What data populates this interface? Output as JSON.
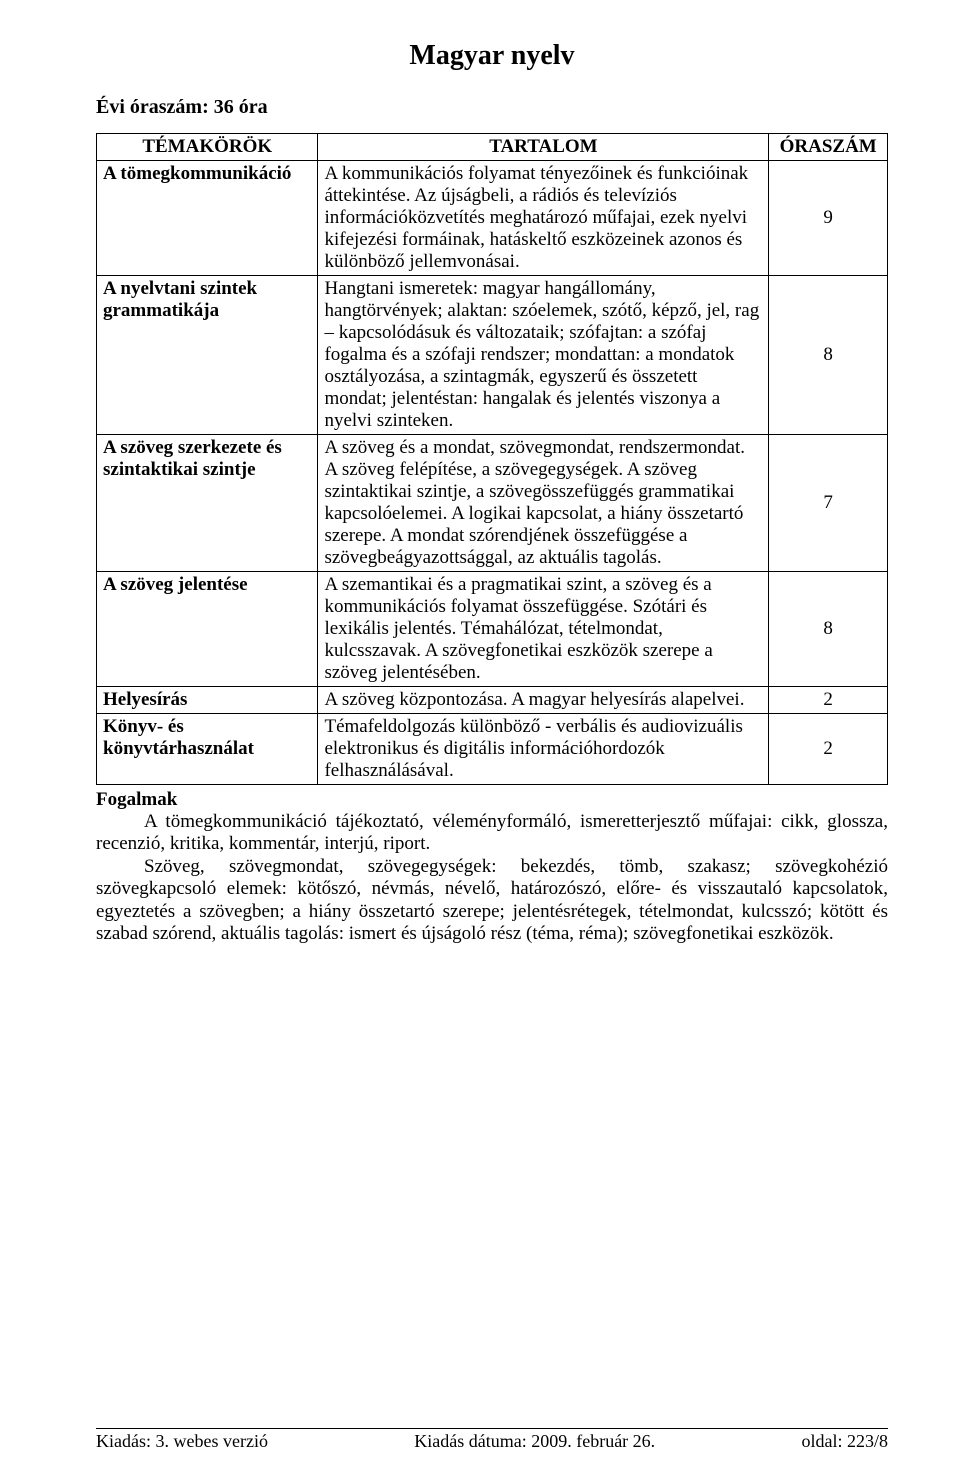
{
  "title": "Magyar nyelv",
  "hours_line": "Évi óraszám: 36 óra",
  "table": {
    "headers": {
      "c1": "TÉMAKÖRÖK",
      "c2": "TARTALOM",
      "c3": "ÓRASZÁM"
    },
    "rows": [
      {
        "topic": "A tömegkommunikáció",
        "content": "A kommunikációs folyamat tényezőinek és funkcióinak áttekintése.\nAz újságbeli, a rádiós és televíziós információközvetítés meghatározó műfajai, ezek nyelvi kifejezési formáinak, hatáskeltő eszközeinek azonos és különböző jellemvonásai.",
        "hours": "9"
      },
      {
        "topic": "A nyelvtani szintek grammatikája",
        "content": "Hangtani ismeretek: magyar hangállomány, hangtörvények;\nalaktan: szóelemek, szótő, képző, jel, rag – kapcsolódásuk és változataik;\nszófajtan: a szófaj fogalma és a szófaji rendszer; mondattan: a mondatok osztályozása, a szintagmák, egyszerű és összetett mondat; jelentéstan: hangalak és jelentés viszonya a nyelvi szinteken.",
        "hours": "8"
      },
      {
        "topic": "A szöveg szerkezete és szintaktikai szintje",
        "content": "A szöveg és a mondat, szövegmondat, rendszermondat.\nA szöveg felépítése, a szövegegységek. A szöveg szintaktikai szintje, a szövegösszefüggés grammatikai kapcsolóelemei. A logikai kapcsolat, a hiány összetartó szerepe. A mondat szórendjének összefüggése a szövegbeágyazottsággal, az aktuális tagolás.",
        "hours": "7"
      },
      {
        "topic": "A szöveg jelentése",
        "content": "A szemantikai és a pragmatikai szint, a szöveg és a kommunikációs folyamat összefüggése. Szótári és lexikális jelentés. Témahálózat, tételmondat, kulcsszavak.\nA szövegfonetikai eszközök szerepe a szöveg jelentésében.",
        "hours": "8"
      },
      {
        "topic": "Helyesírás",
        "content": "A szöveg központozása. A magyar helyesírás alapelvei.",
        "hours": "2"
      },
      {
        "topic": "Könyv- és könyvtárhasználat",
        "content": "Témafeldolgozás különböző - verbális és audiovizuális elektronikus és digitális információhordozók felhasználásával.",
        "hours": "2"
      }
    ]
  },
  "concepts": {
    "title": "Fogalmak",
    "p1": "A tömegkommunikáció tájékoztató, véleményformáló, ismeretterjesztő műfajai: cikk, glossza, recenzió, kritika, kommentár, interjú, riport.",
    "p2": "Szöveg, szövegmondat, szövegegységek: bekezdés, tömb, szakasz; szövegkohézió szövegkapcsoló elemek: kötőszó, névmás, névelő, határozószó, előre- és visszautaló kapcsolatok, egyeztetés a szövegben; a hiány összetartó szerepe; jelentésrétegek, tételmondat, kulcsszó; kötött és szabad szórend, aktuális tagolás: ismert és újságoló rész (téma, réma); szövegfonetikai eszközök."
  },
  "footer": {
    "left": "Kiadás: 3. webes verzió",
    "center": "Kiadás dátuma: 2009. február 26.",
    "right": "oldal: 223/8"
  }
}
